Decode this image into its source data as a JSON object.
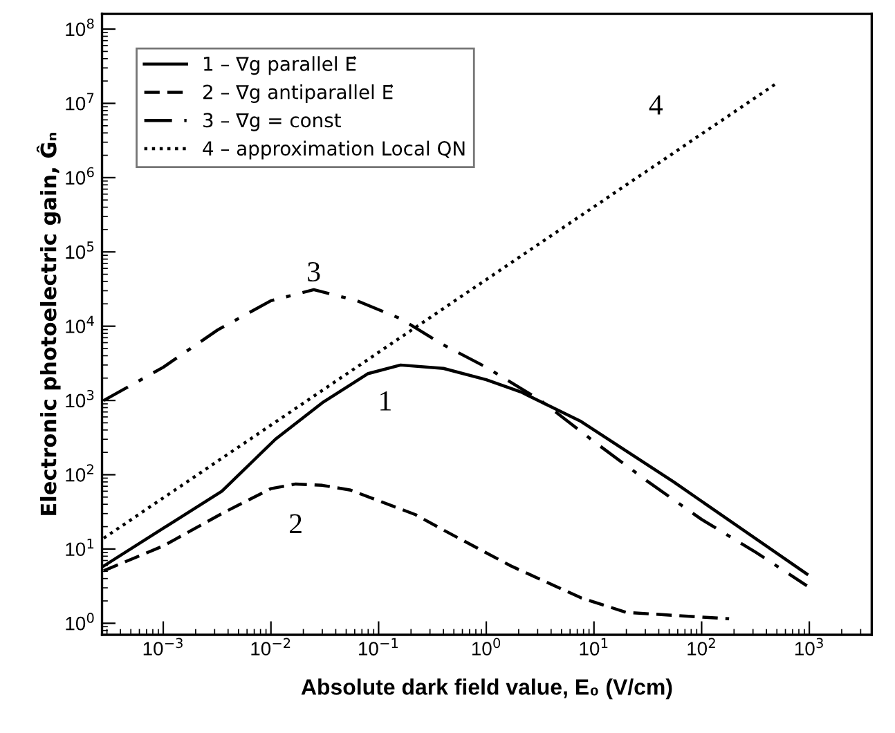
{
  "chart_data": {
    "type": "line",
    "xlabel": "Absolute dark field value, E₀ (V/cm)",
    "ylabel": "Electronic photoelectric gain, Ĝₙ",
    "log": "xy",
    "grid": false,
    "legend": "top left",
    "xlim": [
      0.00027,
      3800
    ],
    "ylim": [
      0.7,
      160000000
    ],
    "xticks": [
      {
        "value": 0.001,
        "label": "10$^{−3}$"
      },
      {
        "value": 0.01,
        "label": "10$^{−2}$"
      },
      {
        "value": 0.1,
        "label": "10$^{−1}$"
      },
      {
        "value": 1,
        "label": "10$^{0}$"
      },
      {
        "value": 10,
        "label": "10$^{1}$"
      },
      {
        "value": 100,
        "label": "10$^{2}$"
      },
      {
        "value": 1000,
        "label": "10$^{3}$"
      }
    ],
    "yticks": [
      {
        "value": 1,
        "label": "10$^{0}$"
      },
      {
        "value": 10,
        "label": "10$^{1}$"
      },
      {
        "value": 100,
        "label": "10$^{2}$"
      },
      {
        "value": 1000,
        "label": "10$^{3}$"
      },
      {
        "value": 10000,
        "label": "10$^{4}$"
      },
      {
        "value": 100000,
        "label": "10$^{5}$"
      },
      {
        "value": 1000000,
        "label": "10$^{6}$"
      },
      {
        "value": 10000000,
        "label": "10$^{7}$"
      },
      {
        "value": 100000000,
        "label": "10$^{8}$"
      }
    ],
    "series": [
      {
        "name": "1 – ∇g parallel E⃗",
        "color": "#000000",
        "line_style": "solid",
        "x": [
          0.00028,
          0.001,
          0.0035,
          0.011,
          0.03,
          0.08,
          0.16,
          0.4,
          1,
          2.1,
          7.6,
          55,
          950
        ],
        "values": [
          5.9,
          19,
          60,
          300,
          930,
          2300,
          3000,
          2700,
          1900,
          1300,
          520,
          80,
          4.6
        ]
      },
      {
        "name": "2 – ∇g antiparallel E⃗",
        "color": "#000000",
        "line_style": "dashed",
        "x": [
          0.00028,
          0.001,
          0.0035,
          0.01,
          0.017,
          0.03,
          0.055,
          0.22,
          0.4,
          1.7,
          7.6,
          20,
          180
        ],
        "values": [
          5.1,
          11,
          30,
          65,
          75,
          72,
          62,
          29,
          18,
          5.9,
          2.2,
          1.4,
          1.15
        ]
      },
      {
        "name": "3 – ∇g = const",
        "color": "#000000",
        "line_style": "dashdot",
        "x": [
          0.00028,
          0.001,
          0.0032,
          0.01,
          0.025,
          0.063,
          0.16,
          0.4,
          1,
          3.2,
          10,
          32,
          100,
          320,
          950
        ],
        "values": [
          1000,
          2800,
          8900,
          22000,
          31000,
          22000,
          12600,
          5600,
          2800,
          1000,
          280,
          80,
          25,
          9,
          3.2
        ]
      },
      {
        "name": "4 – approximation Local QN",
        "color": "#000000",
        "line_style": "dotted",
        "x": [
          0.00028,
          480
        ],
        "values": [
          14,
          18000000
        ]
      }
    ],
    "annotations": [
      "1",
      "2",
      "3",
      "4"
    ]
  }
}
